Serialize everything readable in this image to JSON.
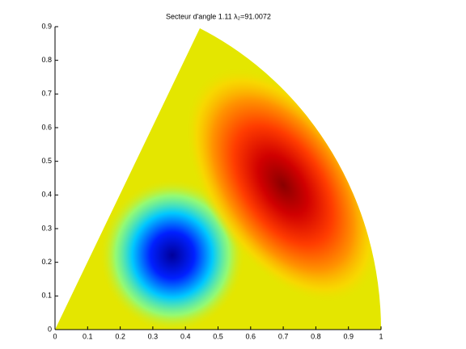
{
  "chart_data": {
    "type": "surface",
    "title": "Secteur d'angle 1.11 λ₂=91.0072",
    "xlim": [
      0,
      1
    ],
    "ylim": [
      0,
      0.9
    ],
    "xticks": [
      0,
      0.1,
      0.2,
      0.3,
      0.4,
      0.5,
      0.6,
      0.7,
      0.8,
      0.9,
      1
    ],
    "yticks": [
      0,
      0.1,
      0.2,
      0.3,
      0.4,
      0.5,
      0.6,
      0.7,
      0.8,
      0.9
    ]
  }
}
